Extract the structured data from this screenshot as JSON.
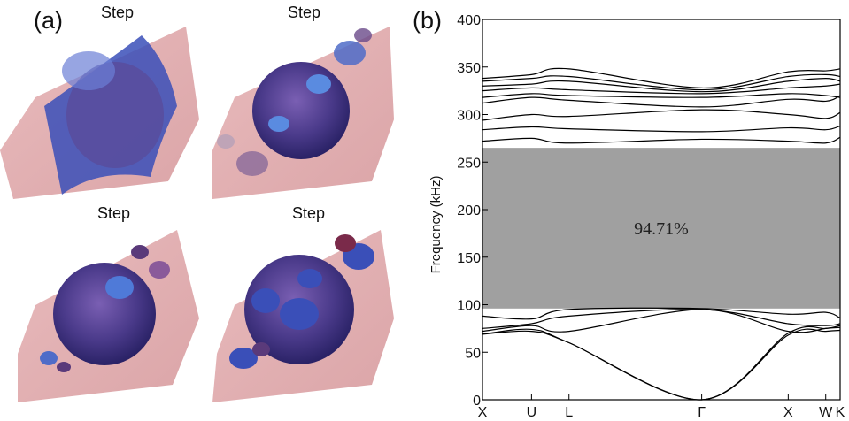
{
  "panel_a": {
    "label": "(a)",
    "steps": [
      {
        "label": "Step"
      },
      {
        "label": "Step"
      },
      {
        "label": "Step"
      },
      {
        "label": "Step"
      }
    ]
  },
  "panel_b": {
    "label": "(b)"
  },
  "chart_data": {
    "type": "line",
    "title": "",
    "xlabel": "",
    "ylabel": "Frequency (kHz)",
    "ylim": [
      0,
      400
    ],
    "yticks": [
      "0",
      "50",
      "100",
      "150",
      "200",
      "250",
      "300",
      "350",
      "400"
    ],
    "xticks": [
      "X",
      "U",
      "L",
      "Γ",
      "X",
      "W",
      "K"
    ],
    "x_positions": [
      0,
      0.85,
      1.5,
      3.8,
      5.3,
      5.95,
      6.2
    ],
    "band_gap": {
      "lower": 96,
      "upper": 265,
      "label": "94.71%",
      "color": "#a0a0a0"
    },
    "series": [
      {
        "values": [
          69,
          72,
          60,
          0,
          68,
          72,
          73
        ]
      },
      {
        "values": [
          69,
          74,
          60,
          0,
          70,
          75,
          76
        ]
      },
      {
        "values": [
          72,
          78,
          72,
          95,
          72,
          75,
          78
        ]
      },
      {
        "values": [
          75,
          80,
          88,
          95,
          80,
          78,
          80
        ]
      },
      {
        "values": [
          88,
          85,
          95,
          96,
          90,
          92,
          86
        ]
      },
      {
        "values": [
          272,
          275,
          270,
          274,
          272,
          270,
          276
        ]
      },
      {
        "values": [
          284,
          287,
          285,
          282,
          286,
          284,
          288
        ]
      },
      {
        "values": [
          294,
          300,
          298,
          305,
          300,
          296,
          302
        ]
      },
      {
        "values": [
          312,
          318,
          315,
          308,
          316,
          314,
          320
        ]
      },
      {
        "values": [
          318,
          322,
          320,
          318,
          322,
          320,
          318
        ]
      },
      {
        "values": [
          325,
          328,
          326,
          322,
          328,
          330,
          332
        ]
      },
      {
        "values": [
          330,
          332,
          335,
          324,
          335,
          338,
          335
        ]
      },
      {
        "values": [
          335,
          338,
          340,
          326,
          340,
          342,
          340
        ]
      },
      {
        "values": [
          338,
          342,
          348,
          328,
          345,
          346,
          348
        ]
      }
    ]
  }
}
